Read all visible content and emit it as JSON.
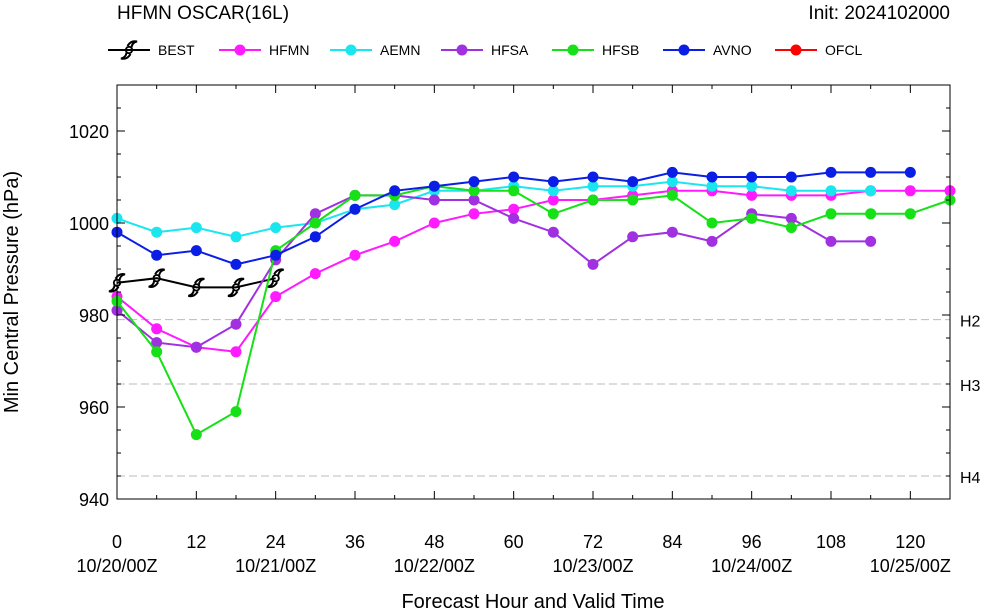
{
  "header": {
    "title": "HFMN OSCAR(16L)",
    "init": "Init: 2024102000"
  },
  "chart_data": {
    "type": "line",
    "xlabel": "Forecast Hour and Valid Time",
    "ylabel": "Min Central Pressure (hPa)",
    "xlim": [
      0,
      126
    ],
    "ylim": [
      940,
      1030
    ],
    "x_ticks": [
      0,
      12,
      24,
      36,
      48,
      60,
      72,
      84,
      96,
      108,
      120
    ],
    "x_tick_labels": [
      "0",
      "12",
      "24",
      "36",
      "48",
      "60",
      "72",
      "84",
      "96",
      "108",
      "120"
    ],
    "date_ticks": [
      {
        "hour": 0,
        "label": "10/20/00Z"
      },
      {
        "hour": 24,
        "label": "10/21/00Z"
      },
      {
        "hour": 48,
        "label": "10/22/00Z"
      },
      {
        "hour": 72,
        "label": "10/23/00Z"
      },
      {
        "hour": 96,
        "label": "10/24/00Z"
      },
      {
        "hour": 120,
        "label": "10/25/00Z"
      }
    ],
    "y_ticks": [
      940,
      960,
      980,
      1000,
      1020
    ],
    "y_tick_labels": [
      "940",
      "960",
      "980",
      "1000",
      "1020"
    ],
    "reference_lines": [
      {
        "label": "H2",
        "y": 979
      },
      {
        "label": "H3",
        "y": 965
      },
      {
        "label": "H4",
        "y": 945
      }
    ],
    "grid": false,
    "legend_position": "top",
    "series": [
      {
        "name": "BEST",
        "color": "#000000",
        "marker": "hurricane-symbol",
        "x": [
          0,
          6,
          12,
          18,
          24
        ],
        "y": [
          987,
          988,
          986,
          986,
          988
        ]
      },
      {
        "name": "HFMN",
        "color": "#ff1aff",
        "marker": "circle",
        "x": [
          0,
          6,
          12,
          18,
          24,
          30,
          36,
          42,
          48,
          54,
          60,
          66,
          72,
          78,
          84,
          90,
          96,
          102,
          108,
          114,
          120,
          126
        ],
        "y": [
          984,
          977,
          973,
          972,
          984,
          989,
          993,
          996,
          1000,
          1002,
          1003,
          1005,
          1005,
          1006,
          1007,
          1007,
          1006,
          1006,
          1006,
          1007,
          1007,
          1007
        ]
      },
      {
        "name": "AEMN",
        "color": "#1ae6f0",
        "marker": "circle",
        "x": [
          0,
          6,
          12,
          18,
          24,
          30,
          36,
          42,
          48,
          54,
          60,
          66,
          72,
          78,
          84,
          90,
          96,
          102,
          108,
          114
        ],
        "y": [
          1001,
          998,
          999,
          997,
          999,
          1000,
          1003,
          1004,
          1007,
          1007,
          1008,
          1007,
          1008,
          1008,
          1009,
          1008,
          1008,
          1007,
          1007,
          1007
        ]
      },
      {
        "name": "HFSA",
        "color": "#a030e0",
        "marker": "circle",
        "x": [
          0,
          6,
          12,
          18,
          24,
          30,
          36,
          42,
          48,
          54,
          60,
          66,
          72,
          78,
          84,
          90,
          96,
          102,
          108,
          114
        ],
        "y": [
          981,
          974,
          973,
          978,
          992,
          1002,
          1006,
          1006,
          1005,
          1005,
          1001,
          998,
          991,
          997,
          998,
          996,
          1002,
          1001,
          996,
          996
        ]
      },
      {
        "name": "HFSB",
        "color": "#16e016",
        "marker": "circle",
        "x": [
          0,
          6,
          12,
          18,
          24,
          30,
          36,
          42,
          48,
          54,
          60,
          66,
          72,
          78,
          84,
          90,
          96,
          102,
          108,
          114,
          120,
          126
        ],
        "y": [
          983,
          972,
          954,
          959,
          994,
          1000,
          1006,
          1006,
          1008,
          1007,
          1007,
          1002,
          1005,
          1005,
          1006,
          1000,
          1001,
          999,
          1002,
          1002,
          1002,
          1005
        ]
      },
      {
        "name": "AVNO",
        "color": "#0a1ee6",
        "marker": "circle",
        "x": [
          0,
          6,
          12,
          18,
          24,
          30,
          36,
          42,
          48,
          54,
          60,
          66,
          72,
          78,
          84,
          90,
          96,
          102,
          108,
          114,
          120
        ],
        "y": [
          998,
          993,
          994,
          991,
          993,
          997,
          1003,
          1007,
          1008,
          1009,
          1010,
          1009,
          1010,
          1009,
          1011,
          1010,
          1010,
          1010,
          1011,
          1011,
          1011
        ]
      },
      {
        "name": "OFCL",
        "color": "#ff0000",
        "marker": "circle",
        "x": [],
        "y": []
      }
    ]
  }
}
